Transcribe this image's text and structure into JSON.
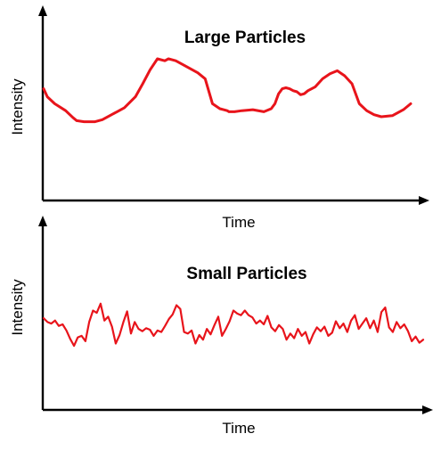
{
  "chart_data": [
    {
      "type": "line",
      "title": "Large Particles",
      "xlabel": "Time",
      "ylabel": "Intensity",
      "grid": false,
      "ticks": false,
      "line_color": "#e8141b",
      "line_width": 3,
      "xlim": [
        0,
        100
      ],
      "ylim": [
        0,
        100
      ],
      "x": [
        0,
        1,
        3,
        6,
        8,
        9,
        11,
        14,
        16,
        18,
        20,
        22,
        25,
        27,
        29,
        31,
        33,
        34,
        35,
        36,
        38,
        40,
        41,
        42,
        44,
        46,
        48,
        49,
        50,
        50.5,
        51,
        52,
        54,
        57,
        60,
        62,
        63,
        64,
        65,
        66,
        67,
        68,
        69,
        70,
        71,
        72,
        74,
        76,
        78,
        80,
        82,
        84,
        86,
        88,
        90,
        92,
        95,
        98,
        100
      ],
      "y": [
        70,
        62,
        55,
        48,
        41,
        38,
        37,
        37,
        39,
        43,
        47,
        51,
        62,
        75,
        89,
        100,
        98,
        100,
        99,
        98,
        94,
        90,
        88,
        86,
        80,
        55,
        50,
        49,
        48,
        47,
        47,
        47,
        48,
        49,
        47,
        50,
        55,
        65,
        70,
        71,
        70,
        68,
        67,
        64,
        65,
        68,
        72,
        80,
        85,
        88,
        83,
        75,
        55,
        48,
        44,
        42,
        43,
        49,
        55
      ]
    },
    {
      "type": "line",
      "title": "Small Particles",
      "xlabel": "Time",
      "ylabel": "Intensity",
      "grid": false,
      "ticks": false,
      "line_color": "#e8141b",
      "line_width": 2.2,
      "xlim": [
        0,
        100
      ],
      "ylim": [
        0,
        100
      ],
      "x": [
        0,
        1,
        2,
        3,
        4,
        5,
        6,
        7,
        8,
        9,
        10,
        11,
        12,
        13,
        14,
        15,
        16,
        17,
        18,
        19,
        20,
        21,
        22,
        23,
        24,
        25,
        26,
        27,
        28,
        29,
        30,
        31,
        32,
        33,
        34,
        35,
        36,
        37,
        38,
        39,
        40,
        41,
        42,
        43,
        44,
        45,
        46,
        47,
        48,
        49,
        50,
        51,
        52,
        53,
        54,
        55,
        56,
        57,
        58,
        59,
        60,
        61,
        62,
        63,
        64,
        65,
        66,
        67,
        68,
        69,
        70,
        71,
        72,
        73,
        74,
        75,
        76,
        77,
        78,
        79,
        80,
        81,
        82,
        83,
        84,
        85,
        86,
        87,
        88,
        89,
        90,
        91,
        92,
        93,
        94,
        95,
        96,
        97,
        98,
        99,
        100
      ],
      "y": [
        65,
        60,
        58,
        62,
        55,
        57,
        49,
        38,
        29,
        40,
        42,
        35,
        60,
        75,
        72,
        84,
        62,
        67,
        54,
        32,
        43,
        60,
        74,
        45,
        60,
        51,
        48,
        52,
        50,
        42,
        49,
        47,
        55,
        64,
        70,
        82,
        77,
        47,
        45,
        49,
        32,
        43,
        37,
        51,
        44,
        56,
        67,
        42,
        51,
        61,
        75,
        71,
        69,
        75,
        69,
        66,
        58,
        62,
        57,
        68,
        53,
        48,
        56,
        51,
        37,
        45,
        39,
        51,
        42,
        47,
        32,
        44,
        53,
        48,
        54,
        42,
        46,
        61,
        52,
        58,
        47,
        62,
        69,
        51,
        58,
        65,
        52,
        62,
        47,
        73,
        79,
        53,
        47,
        60,
        52,
        57,
        48,
        35,
        41,
        33,
        37
      ]
    }
  ]
}
